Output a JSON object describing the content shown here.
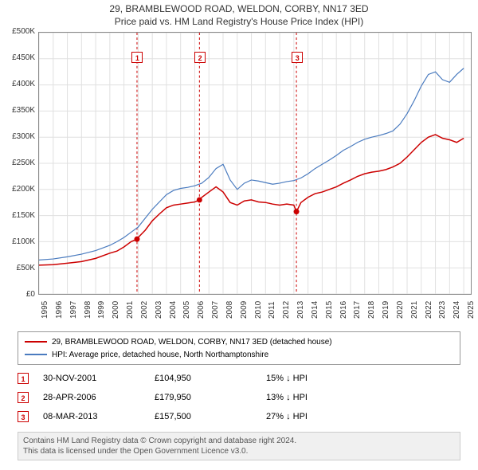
{
  "title_main": "29, BRAMBLEWOOD ROAD, WELDON, CORBY, NN17 3ED",
  "title_sub": "Price paid vs. HM Land Registry's House Price Index (HPI)",
  "chart": {
    "type": "line",
    "background_color": "#ffffff",
    "grid_color": "#e0e0e0",
    "border_color": "#888888",
    "ylabel_prefix": "£",
    "ylim": [
      0,
      500000
    ],
    "ytick_step": 50000,
    "yticks": [
      "£0",
      "£50K",
      "£100K",
      "£150K",
      "£200K",
      "£250K",
      "£300K",
      "£350K",
      "£400K",
      "£450K",
      "£500K"
    ],
    "xlim": [
      1995,
      2025.5
    ],
    "xticks": [
      "1995",
      "1996",
      "1997",
      "1998",
      "1999",
      "2000",
      "2001",
      "2002",
      "2003",
      "2004",
      "2005",
      "2006",
      "2007",
      "2008",
      "2009",
      "2010",
      "2011",
      "2012",
      "2013",
      "2014",
      "2015",
      "2016",
      "2017",
      "2018",
      "2019",
      "2020",
      "2021",
      "2022",
      "2023",
      "2024",
      "2025"
    ],
    "series": [
      {
        "name": "property",
        "label": "29, BRAMBLEWOOD ROAD, WELDON, CORBY, NN17 3ED (detached house)",
        "color": "#cc0000",
        "line_width": 1.5,
        "points": [
          [
            1995,
            55000
          ],
          [
            1996,
            56000
          ],
          [
            1997,
            59000
          ],
          [
            1998,
            62000
          ],
          [
            1999,
            68000
          ],
          [
            2000,
            78000
          ],
          [
            2000.5,
            82000
          ],
          [
            2001,
            90000
          ],
          [
            2001.5,
            100000
          ],
          [
            2001.92,
            104950
          ],
          [
            2002,
            108000
          ],
          [
            2002.5,
            122000
          ],
          [
            2003,
            140000
          ],
          [
            2003.5,
            153000
          ],
          [
            2004,
            165000
          ],
          [
            2004.5,
            170000
          ],
          [
            2005,
            172000
          ],
          [
            2005.5,
            174000
          ],
          [
            2006,
            176000
          ],
          [
            2006.33,
            179950
          ],
          [
            2006.5,
            185000
          ],
          [
            2007,
            195000
          ],
          [
            2007.5,
            205000
          ],
          [
            2008,
            195000
          ],
          [
            2008.5,
            175000
          ],
          [
            2009,
            170000
          ],
          [
            2009.5,
            178000
          ],
          [
            2010,
            180000
          ],
          [
            2010.5,
            176000
          ],
          [
            2011,
            175000
          ],
          [
            2011.5,
            172000
          ],
          [
            2012,
            170000
          ],
          [
            2012.5,
            172000
          ],
          [
            2013,
            170000
          ],
          [
            2013.18,
            157500
          ],
          [
            2013.5,
            175000
          ],
          [
            2014,
            185000
          ],
          [
            2014.5,
            192000
          ],
          [
            2015,
            195000
          ],
          [
            2015.5,
            200000
          ],
          [
            2016,
            205000
          ],
          [
            2016.5,
            212000
          ],
          [
            2017,
            218000
          ],
          [
            2017.5,
            225000
          ],
          [
            2018,
            230000
          ],
          [
            2018.5,
            233000
          ],
          [
            2019,
            235000
          ],
          [
            2019.5,
            238000
          ],
          [
            2020,
            243000
          ],
          [
            2020.5,
            250000
          ],
          [
            2021,
            262000
          ],
          [
            2021.5,
            276000
          ],
          [
            2022,
            290000
          ],
          [
            2022.5,
            300000
          ],
          [
            2023,
            305000
          ],
          [
            2023.5,
            298000
          ],
          [
            2024,
            295000
          ],
          [
            2024.5,
            290000
          ],
          [
            2025,
            298000
          ]
        ]
      },
      {
        "name": "hpi",
        "label": "HPI: Average price, detached house, North Northamptonshire",
        "color": "#4a7bbf",
        "line_width": 1.2,
        "points": [
          [
            1995,
            65000
          ],
          [
            1996,
            67000
          ],
          [
            1997,
            71000
          ],
          [
            1998,
            76000
          ],
          [
            1999,
            83000
          ],
          [
            2000,
            93000
          ],
          [
            2000.5,
            100000
          ],
          [
            2001,
            108000
          ],
          [
            2001.5,
            118000
          ],
          [
            2002,
            128000
          ],
          [
            2002.5,
            145000
          ],
          [
            2003,
            162000
          ],
          [
            2003.5,
            176000
          ],
          [
            2004,
            190000
          ],
          [
            2004.5,
            198000
          ],
          [
            2005,
            202000
          ],
          [
            2005.5,
            204000
          ],
          [
            2006,
            207000
          ],
          [
            2006.5,
            212000
          ],
          [
            2007,
            223000
          ],
          [
            2007.5,
            240000
          ],
          [
            2008,
            248000
          ],
          [
            2008.5,
            218000
          ],
          [
            2009,
            200000
          ],
          [
            2009.5,
            212000
          ],
          [
            2010,
            218000
          ],
          [
            2010.5,
            216000
          ],
          [
            2011,
            213000
          ],
          [
            2011.5,
            210000
          ],
          [
            2012,
            212000
          ],
          [
            2012.5,
            215000
          ],
          [
            2013,
            217000
          ],
          [
            2013.5,
            222000
          ],
          [
            2014,
            230000
          ],
          [
            2014.5,
            240000
          ],
          [
            2015,
            248000
          ],
          [
            2015.5,
            256000
          ],
          [
            2016,
            265000
          ],
          [
            2016.5,
            275000
          ],
          [
            2017,
            282000
          ],
          [
            2017.5,
            290000
          ],
          [
            2018,
            296000
          ],
          [
            2018.5,
            300000
          ],
          [
            2019,
            303000
          ],
          [
            2019.5,
            307000
          ],
          [
            2020,
            312000
          ],
          [
            2020.5,
            325000
          ],
          [
            2021,
            345000
          ],
          [
            2021.5,
            370000
          ],
          [
            2022,
            398000
          ],
          [
            2022.5,
            420000
          ],
          [
            2023,
            425000
          ],
          [
            2023.5,
            410000
          ],
          [
            2024,
            405000
          ],
          [
            2024.5,
            420000
          ],
          [
            2025,
            432000
          ]
        ]
      }
    ],
    "sale_markers": [
      {
        "num": "1",
        "year": 2001.92,
        "price": 104950
      },
      {
        "num": "2",
        "year": 2006.33,
        "price": 179950
      },
      {
        "num": "3",
        "year": 2013.18,
        "price": 157500
      }
    ],
    "marker_line_color": "#cc0000",
    "marker_line_dash": "3,3",
    "marker_box_border": "#cc0000"
  },
  "legend": {
    "items": [
      {
        "color": "#cc0000",
        "text": "29, BRAMBLEWOOD ROAD, WELDON, CORBY, NN17 3ED (detached house)"
      },
      {
        "color": "#4a7bbf",
        "text": "HPI: Average price, detached house, North Northamptonshire"
      }
    ]
  },
  "sales": [
    {
      "num": "1",
      "date": "30-NOV-2001",
      "price": "£104,950",
      "diff": "15% ↓ HPI"
    },
    {
      "num": "2",
      "date": "28-APR-2006",
      "price": "£179,950",
      "diff": "13% ↓ HPI"
    },
    {
      "num": "3",
      "date": "08-MAR-2013",
      "price": "£157,500",
      "diff": "27% ↓ HPI"
    }
  ],
  "footer": {
    "line1": "Contains HM Land Registry data © Crown copyright and database right 2024.",
    "line2": "This data is licensed under the Open Government Licence v3.0."
  }
}
